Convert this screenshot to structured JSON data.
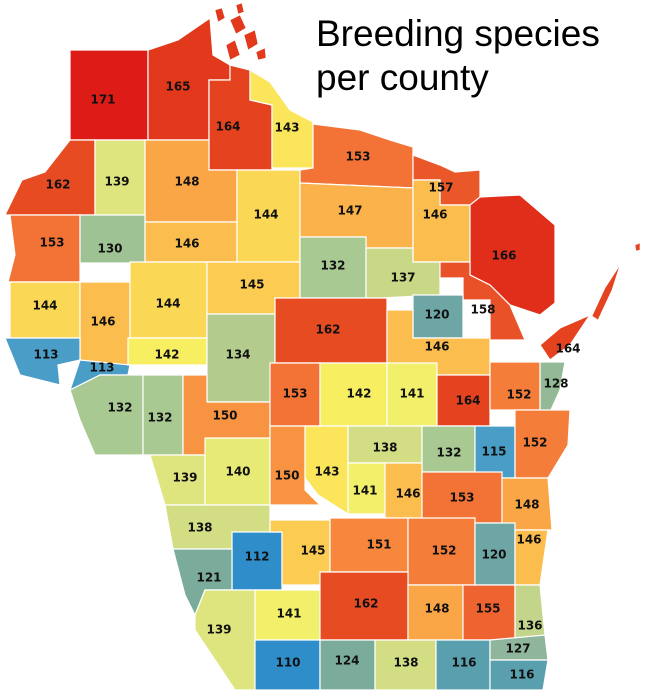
{
  "title": {
    "line1": "Breeding species",
    "line2": "per county"
  },
  "colors": {
    "c110": "#2f8ec9",
    "c112": "#2f8ec9",
    "c113": "#4a9dc6",
    "c115": "#4a9dc6",
    "c116": "#5a9fae",
    "c120": "#6ea6a6",
    "c121": "#7aab9b",
    "c124": "#7aab9b",
    "c127": "#8fb69c",
    "c128": "#93b996",
    "c130": "#9ec293",
    "c132": "#a9c992",
    "c134": "#b3cc8e",
    "c136": "#c3d58a",
    "c137": "#c9d886",
    "c138": "#d3de84",
    "c139": "#dfe57e",
    "c140": "#e8ea76",
    "c141": "#f2ef6a",
    "c142": "#f7ee62",
    "c143": "#fbe55a",
    "c144": "#fbd756",
    "c145": "#fccb52",
    "c146": "#fbbd4e",
    "c147": "#fbb24a",
    "c148": "#faa546",
    "c150": "#f89441",
    "c151": "#f6873d",
    "c152": "#f47e39",
    "c153": "#f27335",
    "c155": "#ee632f",
    "c157": "#ea5729",
    "c158": "#e95229",
    "c162": "#e74b22",
    "c164": "#e5431f",
    "c165": "#e2381c",
    "c166": "#e12e1a",
    "c171": "#dd1c17"
  },
  "counties": [
    {
      "value": "171"
    },
    {
      "value": "165"
    },
    {
      "value": "164"
    },
    {
      "value": "143"
    },
    {
      "value": "162"
    },
    {
      "value": "139"
    },
    {
      "value": "148"
    },
    {
      "value": "153"
    },
    {
      "value": "157"
    },
    {
      "value": "153"
    },
    {
      "value": "130"
    },
    {
      "value": "146"
    },
    {
      "value": "144"
    },
    {
      "value": "147"
    },
    {
      "value": "146"
    },
    {
      "value": "166"
    },
    {
      "value": "144"
    },
    {
      "value": "146"
    },
    {
      "value": "144"
    },
    {
      "value": "145"
    },
    {
      "value": "132"
    },
    {
      "value": "137"
    },
    {
      "value": "158"
    },
    {
      "value": "120"
    },
    {
      "value": "113"
    },
    {
      "value": "113"
    },
    {
      "value": "142"
    },
    {
      "value": "134"
    },
    {
      "value": "162"
    },
    {
      "value": "146"
    },
    {
      "value": "164"
    },
    {
      "value": "128"
    },
    {
      "value": "132"
    },
    {
      "value": "132"
    },
    {
      "value": "150"
    },
    {
      "value": "153"
    },
    {
      "value": "142"
    },
    {
      "value": "141"
    },
    {
      "value": "164"
    },
    {
      "value": "152"
    },
    {
      "value": "139"
    },
    {
      "value": "140"
    },
    {
      "value": "150"
    },
    {
      "value": "143"
    },
    {
      "value": "138"
    },
    {
      "value": "132"
    },
    {
      "value": "115"
    },
    {
      "value": "152"
    },
    {
      "value": "141"
    },
    {
      "value": "146"
    },
    {
      "value": "153"
    },
    {
      "value": "148"
    },
    {
      "value": "138"
    },
    {
      "value": "112"
    },
    {
      "value": "145"
    },
    {
      "value": "151"
    },
    {
      "value": "152"
    },
    {
      "value": "120"
    },
    {
      "value": "146"
    },
    {
      "value": "121"
    },
    {
      "value": "141"
    },
    {
      "value": "162"
    },
    {
      "value": "148"
    },
    {
      "value": "155"
    },
    {
      "value": "139"
    },
    {
      "value": "136"
    },
    {
      "value": "110"
    },
    {
      "value": "124"
    },
    {
      "value": "138"
    },
    {
      "value": "116"
    },
    {
      "value": "127"
    },
    {
      "value": "116"
    }
  ]
}
